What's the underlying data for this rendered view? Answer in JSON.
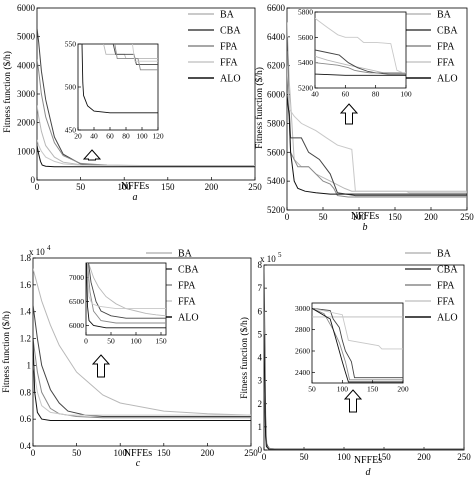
{
  "figure": {
    "axis_xlabel": "NFFEs",
    "axis_ylabel": "Fitness function ($/h)"
  },
  "colors": {
    "BA": "#b8b8b8",
    "CBA": "#444444",
    "FPA": "#8a8a8a",
    "FFA": "#c8c8c8",
    "ALO": "#111111"
  },
  "chart_data": [
    {
      "panel": "a",
      "type": "line",
      "caption": "a",
      "xlabel": "NFFEs",
      "ylabel": "Fitness function ($/h)",
      "xlim": [
        0,
        250
      ],
      "ylim": [
        0,
        6000
      ],
      "xticks": [
        0,
        50,
        100,
        150,
        200,
        250
      ],
      "yticks": [
        0,
        1000,
        2000,
        3000,
        4000,
        5000,
        6000
      ],
      "legend": [
        "BA",
        "CBA",
        "FPA",
        "FFA",
        "ALO"
      ],
      "legend_position": "top-right",
      "series": [
        {
          "name": "BA",
          "x": [
            0,
            2,
            5,
            10,
            20,
            30,
            50,
            80,
            120,
            250
          ],
          "y": [
            2600,
            2200,
            1700,
            1200,
            800,
            620,
            530,
            500,
            495,
            492
          ]
        },
        {
          "name": "CBA",
          "x": [
            0,
            2,
            5,
            10,
            20,
            30,
            50,
            80,
            110,
            250
          ],
          "y": [
            5300,
            4800,
            3800,
            2800,
            1500,
            900,
            560,
            510,
            500,
            500
          ]
        },
        {
          "name": "FPA",
          "x": [
            0,
            2,
            5,
            10,
            20,
            30,
            50,
            80,
            120,
            250
          ],
          "y": [
            4200,
            3800,
            3000,
            2200,
            1300,
            850,
            580,
            520,
            505,
            500
          ]
        },
        {
          "name": "FFA",
          "x": [
            0,
            2,
            5,
            10,
            20,
            30,
            50,
            80,
            120,
            250
          ],
          "y": [
            1400,
            1200,
            1000,
            800,
            650,
            560,
            520,
            505,
            500,
            498
          ]
        },
        {
          "name": "ALO",
          "x": [
            0,
            2,
            4,
            6,
            10,
            15,
            20,
            30,
            50,
            250
          ],
          "y": [
            1200,
            900,
            650,
            520,
            480,
            470,
            465,
            462,
            460,
            460
          ]
        }
      ],
      "inset": {
        "xlim": [
          20,
          120
        ],
        "ylim": [
          450,
          550
        ],
        "xticks": [
          20,
          40,
          60,
          80,
          100,
          120
        ],
        "yticks": [
          450,
          500,
          550
        ],
        "series": [
          {
            "name": "BA",
            "x": [
              52,
              55,
              78,
              80,
              120
            ],
            "y": [
              550,
              538,
              538,
              533,
              533
            ]
          },
          {
            "name": "CBA",
            "x": [
              64,
              67,
              90,
              93,
              120
            ],
            "y": [
              550,
              538,
              538,
              526,
              526
            ]
          },
          {
            "name": "FPA",
            "x": [
              66,
              69,
              95,
              98,
              120
            ],
            "y": [
              550,
              533,
              533,
              520,
              520
            ]
          },
          {
            "name": "FFA",
            "x": [
              88,
              91,
              120
            ],
            "y": [
              550,
              530,
              530
            ]
          },
          {
            "name": "ALO",
            "x": [
              25,
              26,
              27,
              32,
              40,
              60,
              120
            ],
            "y": [
              550,
              505,
              490,
              478,
              472,
              470,
              470
            ]
          }
        ]
      }
    },
    {
      "panel": "b",
      "type": "line",
      "caption": "b",
      "xlabel": "NFFEs",
      "ylabel": "Fitness function ($/h)",
      "xlim": [
        0,
        250
      ],
      "ylim": [
        5200,
        6600
      ],
      "xticks": [
        0,
        50,
        100,
        150,
        200,
        250
      ],
      "yticks": [
        5200,
        5400,
        5600,
        5800,
        6000,
        6200,
        6400,
        6600
      ],
      "legend": [
        "BA",
        "CBA",
        "FPA",
        "FFA",
        "ALO"
      ],
      "legend_position": "top-right",
      "series": [
        {
          "name": "BA",
          "x": [
            0,
            3,
            8,
            10,
            20,
            30,
            40,
            60,
            80,
            90,
            250
          ],
          "y": [
            6500,
            6100,
            5700,
            5550,
            5500,
            5500,
            5450,
            5400,
            5350,
            5330,
            5330
          ]
        },
        {
          "name": "CBA",
          "x": [
            0,
            3,
            5,
            20,
            30,
            45,
            60,
            70,
            95,
            250
          ],
          "y": [
            6400,
            5900,
            5700,
            5700,
            5600,
            5550,
            5450,
            5320,
            5300,
            5300
          ]
        },
        {
          "name": "FPA",
          "x": [
            0,
            3,
            5,
            15,
            30,
            50,
            60,
            65,
            70,
            85,
            250
          ],
          "y": [
            6300,
            5850,
            5600,
            5500,
            5500,
            5400,
            5380,
            5350,
            5300,
            5290,
            5290
          ]
        },
        {
          "name": "FFA",
          "x": [
            0,
            3,
            10,
            20,
            40,
            55,
            70,
            90,
            95,
            165,
            170,
            250
          ],
          "y": [
            6200,
            5900,
            5850,
            5800,
            5750,
            5700,
            5650,
            5620,
            5330,
            5330,
            5320,
            5320
          ]
        },
        {
          "name": "ALO",
          "x": [
            0,
            3,
            5,
            10,
            15,
            25,
            40,
            60,
            250
          ],
          "y": [
            6000,
            5850,
            5600,
            5400,
            5350,
            5330,
            5320,
            5310,
            5310
          ]
        }
      ],
      "inset": {
        "xlim": [
          40,
          100
        ],
        "ylim": [
          5200,
          5800
        ],
        "xticks": [
          40,
          60,
          80,
          100
        ],
        "yticks": [
          5200,
          5400,
          5600,
          5800
        ],
        "series": [
          {
            "name": "BA",
            "x": [
              40,
              48,
              55,
              62,
              70,
              78,
              85,
              90,
              100
            ],
            "y": [
              5450,
              5420,
              5400,
              5380,
              5360,
              5340,
              5320,
              5310,
              5310
            ]
          },
          {
            "name": "CBA",
            "x": [
              40,
              48,
              56,
              62,
              68,
              75,
              80,
              88,
              100
            ],
            "y": [
              5500,
              5480,
              5460,
              5400,
              5360,
              5330,
              5320,
              5310,
              5310
            ]
          },
          {
            "name": "FPA",
            "x": [
              40,
              55,
              62,
              66,
              70,
              76,
              100
            ],
            "y": [
              5400,
              5380,
              5360,
              5340,
              5330,
              5320,
              5320
            ]
          },
          {
            "name": "FFA",
            "x": [
              40,
              48,
              55,
              60,
              68,
              72,
              80,
              90,
              94,
              98,
              100
            ],
            "y": [
              5750,
              5680,
              5620,
              5600,
              5600,
              5560,
              5560,
              5550,
              5340,
              5320,
              5320
            ]
          },
          {
            "name": "ALO",
            "x": [
              40,
              50,
              60,
              100
            ],
            "y": [
              5310,
              5305,
              5300,
              5300
            ]
          }
        ]
      }
    },
    {
      "panel": "c",
      "type": "line",
      "caption": "c",
      "xlabel": "NFFEs",
      "ylabel": "Fitness function ($/h)",
      "y_multiplier_label": "x 10",
      "y_multiplier_exp": "4",
      "xlim": [
        0,
        250
      ],
      "ylim": [
        0.4,
        1.8
      ],
      "xticks": [
        0,
        50,
        100,
        150,
        200,
        250
      ],
      "yticks": [
        0.4,
        0.6,
        0.8,
        1,
        1.2,
        1.4,
        1.6,
        1.8
      ],
      "legend": [
        "BA",
        "CBA",
        "FPA",
        "FFA",
        "ALO"
      ],
      "legend_position": "top-right",
      "series": [
        {
          "name": "BA",
          "x": [
            0,
            5,
            10,
            20,
            30,
            50,
            80,
            100,
            150,
            200,
            250
          ],
          "y": [
            1.72,
            1.6,
            1.48,
            1.3,
            1.15,
            0.95,
            0.78,
            0.72,
            0.66,
            0.64,
            0.63
          ]
        },
        {
          "name": "CBA",
          "x": [
            0,
            5,
            10,
            20,
            30,
            40,
            60,
            80,
            100,
            250
          ],
          "y": [
            1.45,
            1.2,
            1.0,
            0.82,
            0.72,
            0.66,
            0.63,
            0.62,
            0.62,
            0.62
          ]
        },
        {
          "name": "FPA",
          "x": [
            0,
            5,
            10,
            20,
            30,
            50,
            80,
            250
          ],
          "y": [
            1.2,
            0.95,
            0.8,
            0.68,
            0.64,
            0.62,
            0.61,
            0.61
          ]
        },
        {
          "name": "FFA",
          "x": [
            0,
            5,
            10,
            20,
            40,
            60,
            250
          ],
          "y": [
            1.0,
            0.8,
            0.7,
            0.65,
            0.63,
            0.63,
            0.63
          ]
        },
        {
          "name": "ALO",
          "x": [
            0,
            2,
            5,
            10,
            20,
            50,
            250
          ],
          "y": [
            1.2,
            0.8,
            0.65,
            0.6,
            0.59,
            0.59,
            0.59
          ]
        }
      ],
      "inset": {
        "xlim": [
          0,
          160
        ],
        "ylim": [
          5800,
          7300
        ],
        "xticks": [
          0,
          50,
          100,
          150
        ],
        "yticks": [
          6000,
          6500,
          7000
        ],
        "series": [
          {
            "name": "BA",
            "x": [
              5,
              15,
              25,
              40,
              60,
              80,
              100,
              120,
              140,
              160
            ],
            "y": [
              7300,
              7000,
              6800,
              6600,
              6450,
              6350,
              6300,
              6250,
              6220,
              6200
            ]
          },
          {
            "name": "CBA",
            "x": [
              5,
              10,
              20,
              30,
              50,
              80,
              160
            ],
            "y": [
              7300,
              6900,
              6500,
              6300,
              6200,
              6150,
              6150
            ]
          },
          {
            "name": "FPA",
            "x": [
              3,
              8,
              15,
              30,
              60,
              100,
              160
            ],
            "y": [
              7300,
              6700,
              6300,
              6100,
              6050,
              6050,
              6050
            ]
          },
          {
            "name": "FFA",
            "x": [
              2,
              6,
              12,
              25,
              60,
              160
            ],
            "y": [
              7300,
              6600,
              6450,
              6400,
              6350,
              6350
            ]
          },
          {
            "name": "ALO",
            "x": [
              1,
              3,
              6,
              15,
              40,
              160
            ],
            "y": [
              7300,
              6400,
              6100,
              6000,
              5950,
              5950
            ]
          }
        ]
      }
    },
    {
      "panel": "d",
      "type": "line",
      "caption": "d",
      "xlabel": "NFFEs",
      "ylabel": "Fitness function ($/h)",
      "y_multiplier_label": "x 10",
      "y_multiplier_exp": "5",
      "xlim": [
        0,
        250
      ],
      "ylim": [
        0,
        8
      ],
      "xticks": [
        0,
        50,
        100,
        150,
        200,
        250
      ],
      "yticks": [
        0,
        1,
        2,
        3,
        4,
        5,
        6,
        7,
        8
      ],
      "legend": [
        "BA",
        "CBA",
        "FPA",
        "FFA",
        "ALO"
      ],
      "legend_position": "top-right",
      "series": [
        {
          "name": "BA",
          "x": [
            0,
            1,
            2,
            4,
            8,
            20,
            250
          ],
          "y": [
            4.5,
            3.0,
            0.8,
            0.2,
            0.05,
            0.03,
            0.03
          ]
        },
        {
          "name": "CBA",
          "x": [
            0,
            1,
            2,
            3,
            6,
            20,
            250
          ],
          "y": [
            7.8,
            5.0,
            1.5,
            0.3,
            0.05,
            0.03,
            0.03
          ]
        },
        {
          "name": "FPA",
          "x": [
            0,
            1,
            2,
            3,
            6,
            20,
            250
          ],
          "y": [
            6.0,
            3.5,
            1.0,
            0.2,
            0.05,
            0.03,
            0.03
          ]
        },
        {
          "name": "FFA",
          "x": [
            0,
            1,
            2,
            3,
            6,
            20,
            250
          ],
          "y": [
            3.0,
            2.0,
            0.6,
            0.15,
            0.04,
            0.03,
            0.03
          ]
        },
        {
          "name": "ALO",
          "x": [
            0,
            1,
            2,
            3,
            6,
            20,
            250
          ],
          "y": [
            5.0,
            2.5,
            0.6,
            0.15,
            0.04,
            0.03,
            0.03
          ]
        }
      ],
      "inset": {
        "xlim": [
          50,
          200
        ],
        "ylim": [
          2300,
          3050
        ],
        "xticks": [
          50,
          100,
          150,
          200
        ],
        "yticks": [
          2400,
          2600,
          2800,
          3000
        ],
        "series": [
          {
            "name": "BA",
            "x": [
              50,
              200
            ],
            "y": [
              2920,
              2920
            ]
          },
          {
            "name": "CBA",
            "x": [
              50,
              80,
              85,
              95,
              100,
              105,
              115,
              120,
              200
            ],
            "y": [
              3000,
              2980,
              2900,
              2820,
              2700,
              2600,
              2500,
              2350,
              2350
            ]
          },
          {
            "name": "FPA",
            "x": [
              50,
              70,
              85,
              95,
              105,
              112,
              200
            ],
            "y": [
              3000,
              2950,
              2800,
              2680,
              2500,
              2330,
              2330
            ]
          },
          {
            "name": "FFA",
            "x": [
              50,
              100,
              110,
              160,
              165,
              200
            ],
            "y": [
              3000,
              2940,
              2700,
              2650,
              2620,
              2620
            ]
          },
          {
            "name": "ALO",
            "x": [
              50,
              80,
              90,
              100,
              105,
              110,
              200
            ],
            "y": [
              3000,
              2900,
              2700,
              2500,
              2400,
              2310,
              2310
            ]
          }
        ]
      }
    }
  ]
}
